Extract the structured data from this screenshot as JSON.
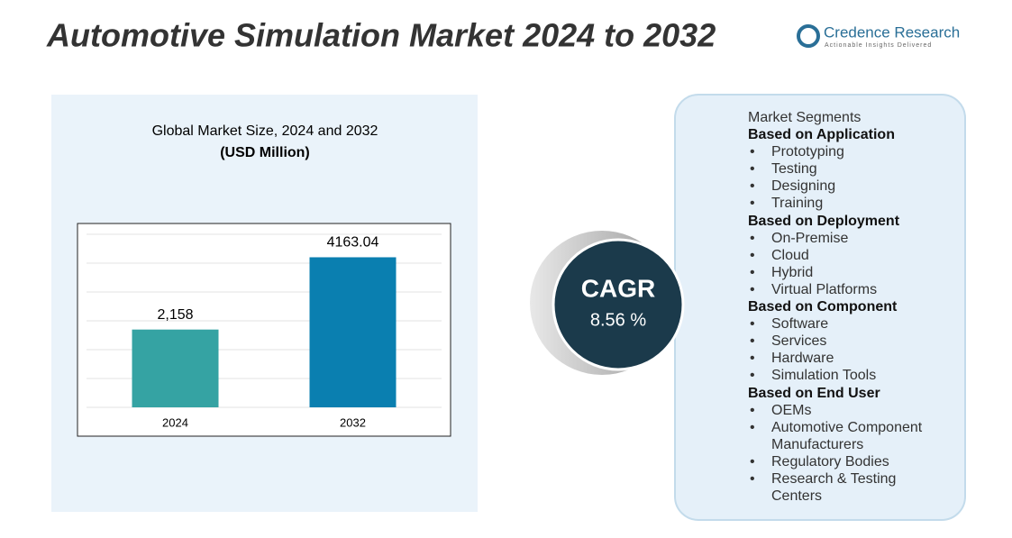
{
  "title": "Automotive Simulation Market 2024 to 2032",
  "logo": {
    "name": "Credence Research",
    "tagline": "Actionable Insights Delivered"
  },
  "chart_data": {
    "type": "bar",
    "title": "Global Market Size,  2024 and 2032",
    "subtitle": "(USD Million)",
    "categories": [
      "2024",
      "2032"
    ],
    "values": [
      2158,
      4163.04
    ],
    "value_labels": [
      "2,158",
      "4163.04"
    ],
    "colors": [
      "#35a3a3",
      "#0a7fb0"
    ],
    "ylim": [
      0,
      5000
    ],
    "yticks": [
      0,
      800,
      1600,
      2400,
      3200,
      4000,
      4800
    ],
    "grid": true
  },
  "cagr": {
    "label": "CAGR",
    "value": "8.56 %"
  },
  "segments": {
    "title": "Market Segments",
    "groups": [
      {
        "heading": "Based on Application",
        "items": [
          "Prototyping",
          "Testing",
          "Designing",
          "Training"
        ]
      },
      {
        "heading": "Based on Deployment",
        "items": [
          "On-Premise",
          "Cloud",
          "Hybrid",
          "Virtual Platforms"
        ]
      },
      {
        "heading": "Based on Component",
        "items": [
          "Software",
          "Services",
          "Hardware",
          "Simulation Tools"
        ]
      },
      {
        "heading": "Based on End User",
        "items": [
          "OEMs",
          "Automotive Component Manufacturers",
          "Regulatory Bodies",
          "Research & Testing Centers"
        ]
      }
    ]
  }
}
